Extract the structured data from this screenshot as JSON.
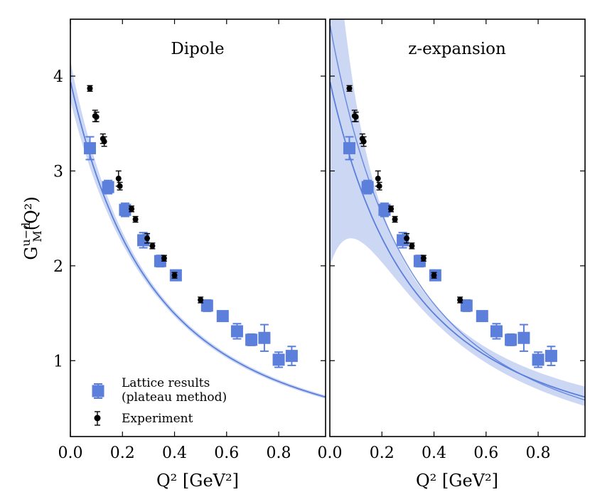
{
  "chart_data": {
    "type": "scatter",
    "ylabel": {
      "base": "G",
      "sup": "u−d",
      "sub": "M",
      "arg": "(Q²)"
    },
    "xlabel": "Q² [GeV²]",
    "xlim": [
      0.0,
      0.98
    ],
    "ylim": [
      0.2,
      4.6
    ],
    "xticks": [
      0.0,
      0.2,
      0.4,
      0.6,
      0.8
    ],
    "xtick_labels": [
      "0.0",
      "0.2",
      "0.4",
      "0.6",
      "0.8"
    ],
    "yticks": [
      1,
      2,
      3,
      4
    ],
    "ytick_labels": [
      "1",
      "2",
      "3",
      "4"
    ],
    "colors": {
      "lattice": "#5b7fdb",
      "band": "#c7d3f3",
      "fit": "#5b7fdb",
      "experiment": "#000000"
    },
    "legend": {
      "position": "bottom-left",
      "entries": [
        {
          "lines": [
            "Lattice results",
            "(plateau method)"
          ]
        },
        {
          "lines": [
            "Experiment"
          ]
        }
      ]
    },
    "panels": [
      {
        "title": "Dipole",
        "fit": {
          "type": "dipole",
          "g0": 3.95,
          "mass_sq": 0.64,
          "band_g0_err": 0.2
        },
        "lattice": [
          {
            "x": 0.075,
            "y": 3.24,
            "err": 0.12
          },
          {
            "x": 0.145,
            "y": 2.83,
            "err": 0.07
          },
          {
            "x": 0.21,
            "y": 2.59,
            "err": 0.07
          },
          {
            "x": 0.28,
            "y": 2.27,
            "err": 0.08
          },
          {
            "x": 0.345,
            "y": 2.05,
            "err": 0.06
          },
          {
            "x": 0.405,
            "y": 1.9,
            "err": 0.05
          },
          {
            "x": 0.525,
            "y": 1.58,
            "err": 0.06
          },
          {
            "x": 0.585,
            "y": 1.47,
            "err": 0.05
          },
          {
            "x": 0.64,
            "y": 1.31,
            "err": 0.08
          },
          {
            "x": 0.695,
            "y": 1.22,
            "err": 0.06
          },
          {
            "x": 0.745,
            "y": 1.24,
            "err": 0.14
          },
          {
            "x": 0.8,
            "y": 1.01,
            "err": 0.08
          },
          {
            "x": 0.85,
            "y": 1.05,
            "err": 0.1
          }
        ],
        "experiment": [
          {
            "x": 0.075,
            "y": 3.87,
            "err": 0.03
          },
          {
            "x": 0.095,
            "y": 3.58,
            "err": 0.06
          },
          {
            "x": 0.1,
            "y": 3.57,
            "err": 0.05
          },
          {
            "x": 0.125,
            "y": 3.34,
            "err": 0.05
          },
          {
            "x": 0.13,
            "y": 3.31,
            "err": 0.05
          },
          {
            "x": 0.185,
            "y": 2.92,
            "err": 0.08
          },
          {
            "x": 0.19,
            "y": 2.84,
            "err": 0.04
          },
          {
            "x": 0.235,
            "y": 2.6,
            "err": 0.03
          },
          {
            "x": 0.25,
            "y": 2.49,
            "err": 0.03
          },
          {
            "x": 0.295,
            "y": 2.29,
            "err": 0.05
          },
          {
            "x": 0.315,
            "y": 2.21,
            "err": 0.03
          },
          {
            "x": 0.36,
            "y": 2.08,
            "err": 0.03
          },
          {
            "x": 0.4,
            "y": 1.9,
            "err": 0.03
          },
          {
            "x": 0.5,
            "y": 1.64,
            "err": 0.03
          }
        ]
      },
      {
        "title": "z-expansion",
        "fit": {
          "type": "z-expansion",
          "g0": 3.95,
          "mass_sq": 0.64,
          "band_g0_err": 0.2
        },
        "lattice": [
          {
            "x": 0.075,
            "y": 3.24,
            "err": 0.12
          },
          {
            "x": 0.145,
            "y": 2.83,
            "err": 0.07
          },
          {
            "x": 0.21,
            "y": 2.59,
            "err": 0.07
          },
          {
            "x": 0.28,
            "y": 2.27,
            "err": 0.08
          },
          {
            "x": 0.345,
            "y": 2.05,
            "err": 0.06
          },
          {
            "x": 0.405,
            "y": 1.9,
            "err": 0.05
          },
          {
            "x": 0.525,
            "y": 1.58,
            "err": 0.06
          },
          {
            "x": 0.585,
            "y": 1.47,
            "err": 0.05
          },
          {
            "x": 0.64,
            "y": 1.31,
            "err": 0.08
          },
          {
            "x": 0.695,
            "y": 1.22,
            "err": 0.06
          },
          {
            "x": 0.745,
            "y": 1.24,
            "err": 0.14
          },
          {
            "x": 0.8,
            "y": 1.01,
            "err": 0.08
          },
          {
            "x": 0.85,
            "y": 1.05,
            "err": 0.1
          }
        ],
        "experiment": [
          {
            "x": 0.075,
            "y": 3.87,
            "err": 0.03
          },
          {
            "x": 0.095,
            "y": 3.58,
            "err": 0.06
          },
          {
            "x": 0.1,
            "y": 3.57,
            "err": 0.05
          },
          {
            "x": 0.125,
            "y": 3.34,
            "err": 0.05
          },
          {
            "x": 0.13,
            "y": 3.31,
            "err": 0.05
          },
          {
            "x": 0.185,
            "y": 2.92,
            "err": 0.08
          },
          {
            "x": 0.19,
            "y": 2.84,
            "err": 0.04
          },
          {
            "x": 0.235,
            "y": 2.6,
            "err": 0.03
          },
          {
            "x": 0.25,
            "y": 2.49,
            "err": 0.03
          },
          {
            "x": 0.295,
            "y": 2.29,
            "err": 0.05
          },
          {
            "x": 0.315,
            "y": 2.21,
            "err": 0.03
          },
          {
            "x": 0.36,
            "y": 2.08,
            "err": 0.03
          },
          {
            "x": 0.4,
            "y": 1.9,
            "err": 0.03
          },
          {
            "x": 0.5,
            "y": 1.64,
            "err": 0.03
          }
        ]
      }
    ]
  }
}
